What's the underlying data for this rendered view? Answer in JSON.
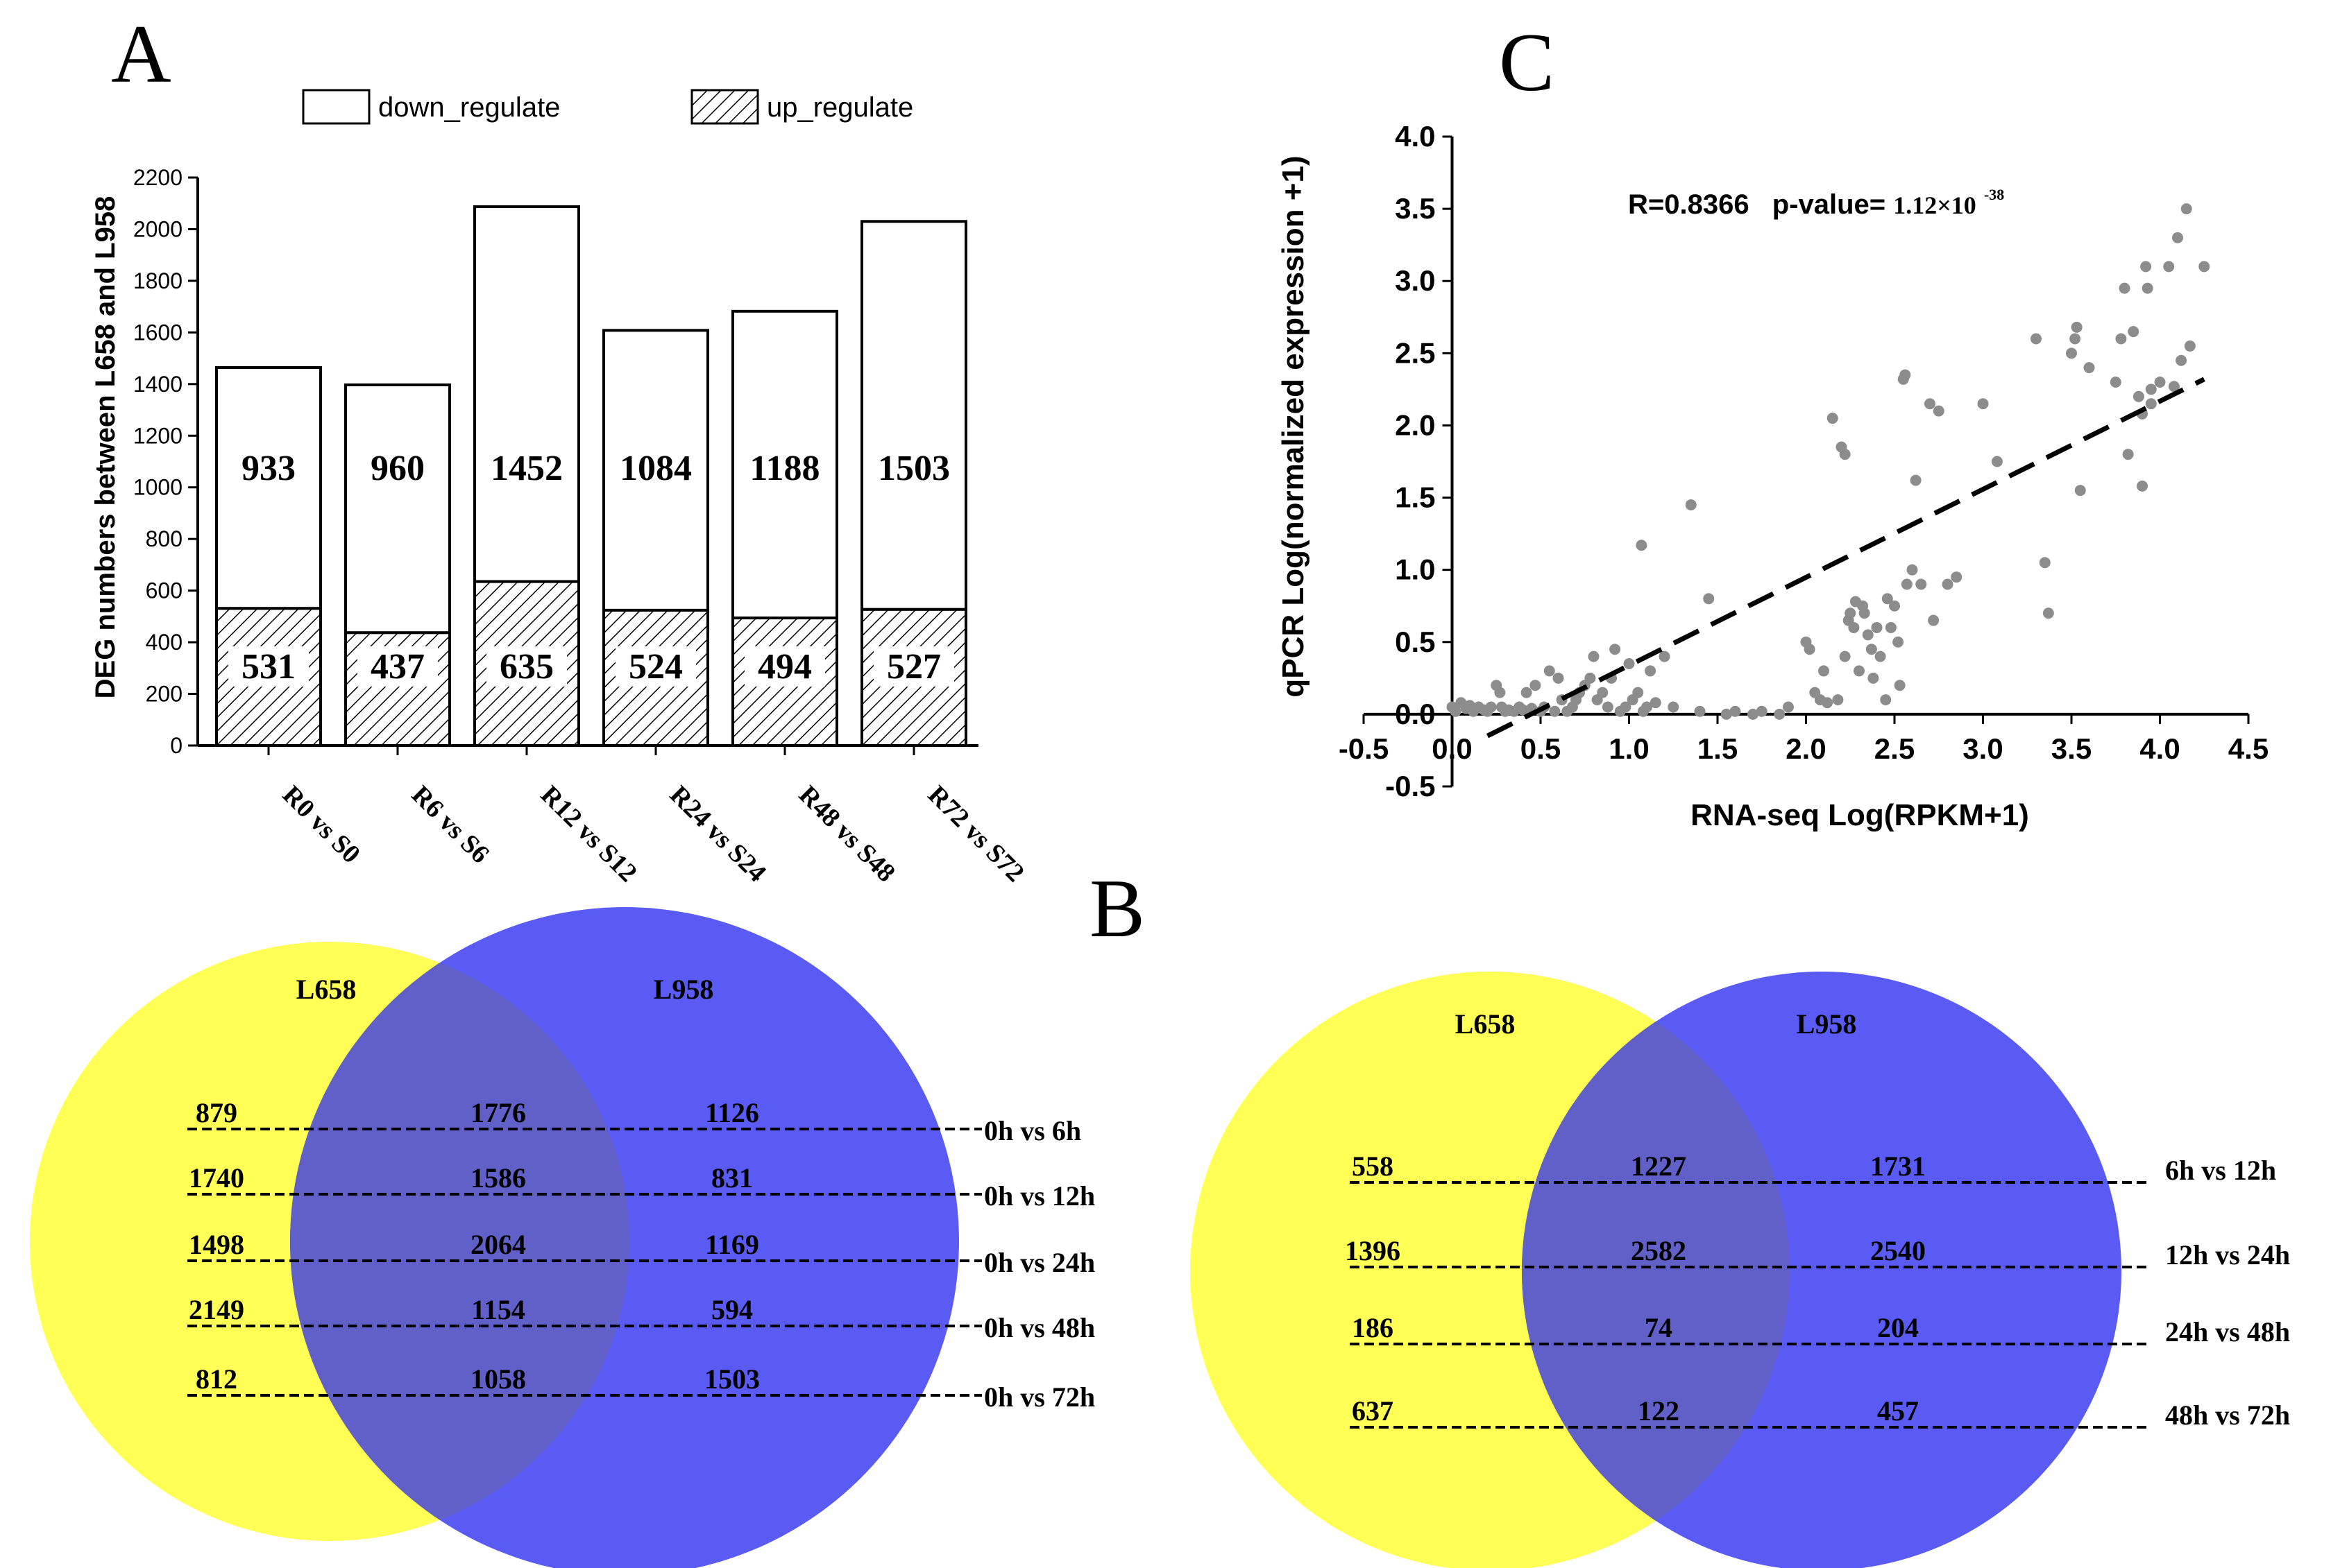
{
  "panel_labels": {
    "A": "A",
    "B": "B",
    "C": "C"
  },
  "chart_data": [
    {
      "type": "bar",
      "stacked": true,
      "panel": "A",
      "ylabel": "DEG numbers between L658 and L958",
      "ylim": [
        0,
        2200
      ],
      "yticks": [
        0,
        200,
        400,
        600,
        800,
        1000,
        1200,
        1400,
        1600,
        1800,
        2000,
        2200
      ],
      "categories": [
        "R0 vs S0",
        "R6 vs S6",
        "R12 vs S12",
        "R24 vs S24",
        "R48 vs S48",
        "R72 vs S72"
      ],
      "series": [
        {
          "name": "up_regulate",
          "fill": "hatched",
          "values": [
            531,
            437,
            635,
            524,
            494,
            527
          ]
        },
        {
          "name": "down_regulate",
          "fill": "white",
          "values": [
            933,
            960,
            1452,
            1084,
            1188,
            1503
          ]
        }
      ],
      "legend": "top"
    },
    {
      "type": "scatter",
      "panel": "C",
      "xlabel": "RNA-seq  Log(RPKM+1)",
      "ylabel": "qPCR  Log(normalized expression +1)",
      "xlim": [
        -0.5,
        4.5
      ],
      "ylim": [
        -0.5,
        4.0
      ],
      "xticks": [
        -0.5,
        0.0,
        0.5,
        1.0,
        1.5,
        2.0,
        2.5,
        3.0,
        3.5,
        4.0,
        4.5
      ],
      "yticks": [
        -0.5,
        0.0,
        0.5,
        1.0,
        1.5,
        2.0,
        2.5,
        3.0,
        3.5,
        4.0
      ],
      "annotation": {
        "r": "R=0.8366",
        "p_prefix": "p-value=",
        "p_value": "1.12×10",
        "p_exp": "-38"
      },
      "point_color": "#8c8c8c",
      "fit_line": {
        "x": [
          0.2,
          4.25
        ],
        "y": [
          -0.15,
          2.32
        ]
      },
      "points": [
        [
          0.0,
          0.05
        ],
        [
          0.02,
          0.02
        ],
        [
          0.05,
          0.08
        ],
        [
          0.08,
          0.04
        ],
        [
          0.1,
          0.06
        ],
        [
          0.12,
          0.02
        ],
        [
          0.15,
          0.05
        ],
        [
          0.18,
          0.03
        ],
        [
          0.2,
          0.02
        ],
        [
          0.22,
          0.05
        ],
        [
          0.25,
          0.2
        ],
        [
          0.27,
          0.15
        ],
        [
          0.28,
          0.05
        ],
        [
          0.3,
          0.02
        ],
        [
          0.32,
          0.03
        ],
        [
          0.35,
          0.02
        ],
        [
          0.38,
          0.05
        ],
        [
          0.4,
          0.03
        ],
        [
          0.42,
          0.15
        ],
        [
          0.45,
          0.04
        ],
        [
          0.47,
          0.2
        ],
        [
          0.5,
          0.02
        ],
        [
          0.52,
          0.05
        ],
        [
          0.55,
          0.3
        ],
        [
          0.58,
          0.02
        ],
        [
          0.6,
          0.25
        ],
        [
          0.62,
          0.1
        ],
        [
          0.65,
          0.02
        ],
        [
          0.68,
          0.05
        ],
        [
          0.7,
          0.1
        ],
        [
          0.72,
          0.15
        ],
        [
          0.75,
          0.2
        ],
        [
          0.78,
          0.25
        ],
        [
          0.8,
          0.4
        ],
        [
          0.82,
          0.1
        ],
        [
          0.85,
          0.15
        ],
        [
          0.88,
          0.05
        ],
        [
          0.9,
          0.25
        ],
        [
          0.92,
          0.45
        ],
        [
          0.95,
          0.02
        ],
        [
          0.98,
          0.05
        ],
        [
          1.0,
          0.35
        ],
        [
          1.02,
          0.1
        ],
        [
          1.05,
          0.15
        ],
        [
          1.07,
          1.17
        ],
        [
          1.08,
          0.02
        ],
        [
          1.1,
          0.05
        ],
        [
          1.12,
          0.3
        ],
        [
          1.15,
          0.08
        ],
        [
          1.2,
          0.4
        ],
        [
          1.25,
          0.05
        ],
        [
          1.35,
          1.45
        ],
        [
          1.4,
          0.02
        ],
        [
          1.45,
          0.8
        ],
        [
          1.55,
          0.0
        ],
        [
          1.6,
          0.02
        ],
        [
          1.7,
          0.0
        ],
        [
          1.75,
          0.02
        ],
        [
          1.85,
          0.0
        ],
        [
          1.9,
          0.05
        ],
        [
          2.0,
          0.5
        ],
        [
          2.02,
          0.45
        ],
        [
          2.05,
          0.15
        ],
        [
          2.08,
          0.1
        ],
        [
          2.1,
          0.3
        ],
        [
          2.12,
          0.08
        ],
        [
          2.15,
          2.05
        ],
        [
          2.18,
          0.1
        ],
        [
          2.2,
          1.85
        ],
        [
          2.22,
          1.8
        ],
        [
          2.22,
          0.4
        ],
        [
          2.24,
          0.65
        ],
        [
          2.25,
          0.7
        ],
        [
          2.27,
          0.6
        ],
        [
          2.28,
          0.78
        ],
        [
          2.3,
          0.3
        ],
        [
          2.32,
          0.75
        ],
        [
          2.33,
          0.7
        ],
        [
          2.35,
          0.55
        ],
        [
          2.37,
          0.45
        ],
        [
          2.38,
          0.25
        ],
        [
          2.4,
          0.6
        ],
        [
          2.42,
          0.4
        ],
        [
          2.45,
          0.1
        ],
        [
          2.46,
          0.8
        ],
        [
          2.48,
          0.6
        ],
        [
          2.5,
          0.75
        ],
        [
          2.52,
          0.5
        ],
        [
          2.53,
          0.2
        ],
        [
          2.55,
          2.32
        ],
        [
          2.56,
          2.35
        ],
        [
          2.57,
          0.9
        ],
        [
          2.6,
          1.0
        ],
        [
          2.62,
          1.62
        ],
        [
          2.65,
          0.9
        ],
        [
          2.7,
          2.15
        ],
        [
          2.72,
          0.65
        ],
        [
          2.75,
          2.1
        ],
        [
          2.8,
          0.9
        ],
        [
          2.85,
          0.95
        ],
        [
          3.0,
          2.15
        ],
        [
          3.08,
          1.75
        ],
        [
          3.3,
          2.6
        ],
        [
          3.35,
          1.05
        ],
        [
          3.37,
          0.7
        ],
        [
          3.5,
          2.5
        ],
        [
          3.52,
          2.6
        ],
        [
          3.53,
          2.68
        ],
        [
          3.55,
          1.55
        ],
        [
          3.75,
          2.3
        ],
        [
          3.78,
          2.6
        ],
        [
          3.8,
          2.95
        ],
        [
          3.82,
          1.8
        ],
        [
          3.85,
          2.65
        ],
        [
          3.88,
          2.2
        ],
        [
          3.9,
          2.08
        ],
        [
          3.9,
          1.58
        ],
        [
          3.92,
          3.1
        ],
        [
          3.93,
          2.95
        ],
        [
          3.95,
          2.25
        ],
        [
          4.05,
          3.1
        ],
        [
          4.08,
          2.27
        ],
        [
          4.1,
          3.3
        ],
        [
          4.12,
          2.45
        ],
        [
          4.15,
          3.5
        ],
        [
          4.17,
          2.55
        ],
        [
          4.25,
          3.1
        ],
        [
          3.95,
          2.15
        ],
        [
          4.0,
          2.3
        ],
        [
          3.6,
          2.4
        ]
      ]
    },
    {
      "type": "table",
      "panel": "B",
      "venn": "left",
      "sets": [
        "L658",
        "L958"
      ],
      "rows": [
        {
          "label": "0h vs 6h",
          "only_L658": "879",
          "both": "1776",
          "only_L958": "1126"
        },
        {
          "label": "0h vs 12h",
          "only_L658": "1740",
          "both": "1586",
          "only_L958": "831"
        },
        {
          "label": "0h vs 24h",
          "only_L658": "1498",
          "both": "2064",
          "only_L958": "1169"
        },
        {
          "label": "0h vs 48h",
          "only_L658": "2149",
          "both": "1154",
          "only_L958": "594"
        },
        {
          "label": "0h vs 72h",
          "only_L658": "812",
          "both": "1058",
          "only_L958": "1503"
        }
      ]
    },
    {
      "type": "table",
      "panel": "B",
      "venn": "right",
      "sets": [
        "L658",
        "L958"
      ],
      "rows": [
        {
          "label": "6h vs 12h",
          "only_L658": "558",
          "both": "1227",
          "only_L958": "1731"
        },
        {
          "label": "12h vs 24h",
          "only_L658": "1396",
          "both": "2582",
          "only_L958": "2540"
        },
        {
          "label": "24h vs 48h",
          "only_L658": "186",
          "both": "74",
          "only_L958": "204"
        },
        {
          "label": "48h vs 72h",
          "only_L658": "637",
          "both": "122",
          "only_L958": "457"
        }
      ]
    }
  ],
  "colors": {
    "venn_left_set": "#ffff55",
    "venn_right_set": "#5a5af5",
    "venn_overlap": "#6060c8"
  }
}
